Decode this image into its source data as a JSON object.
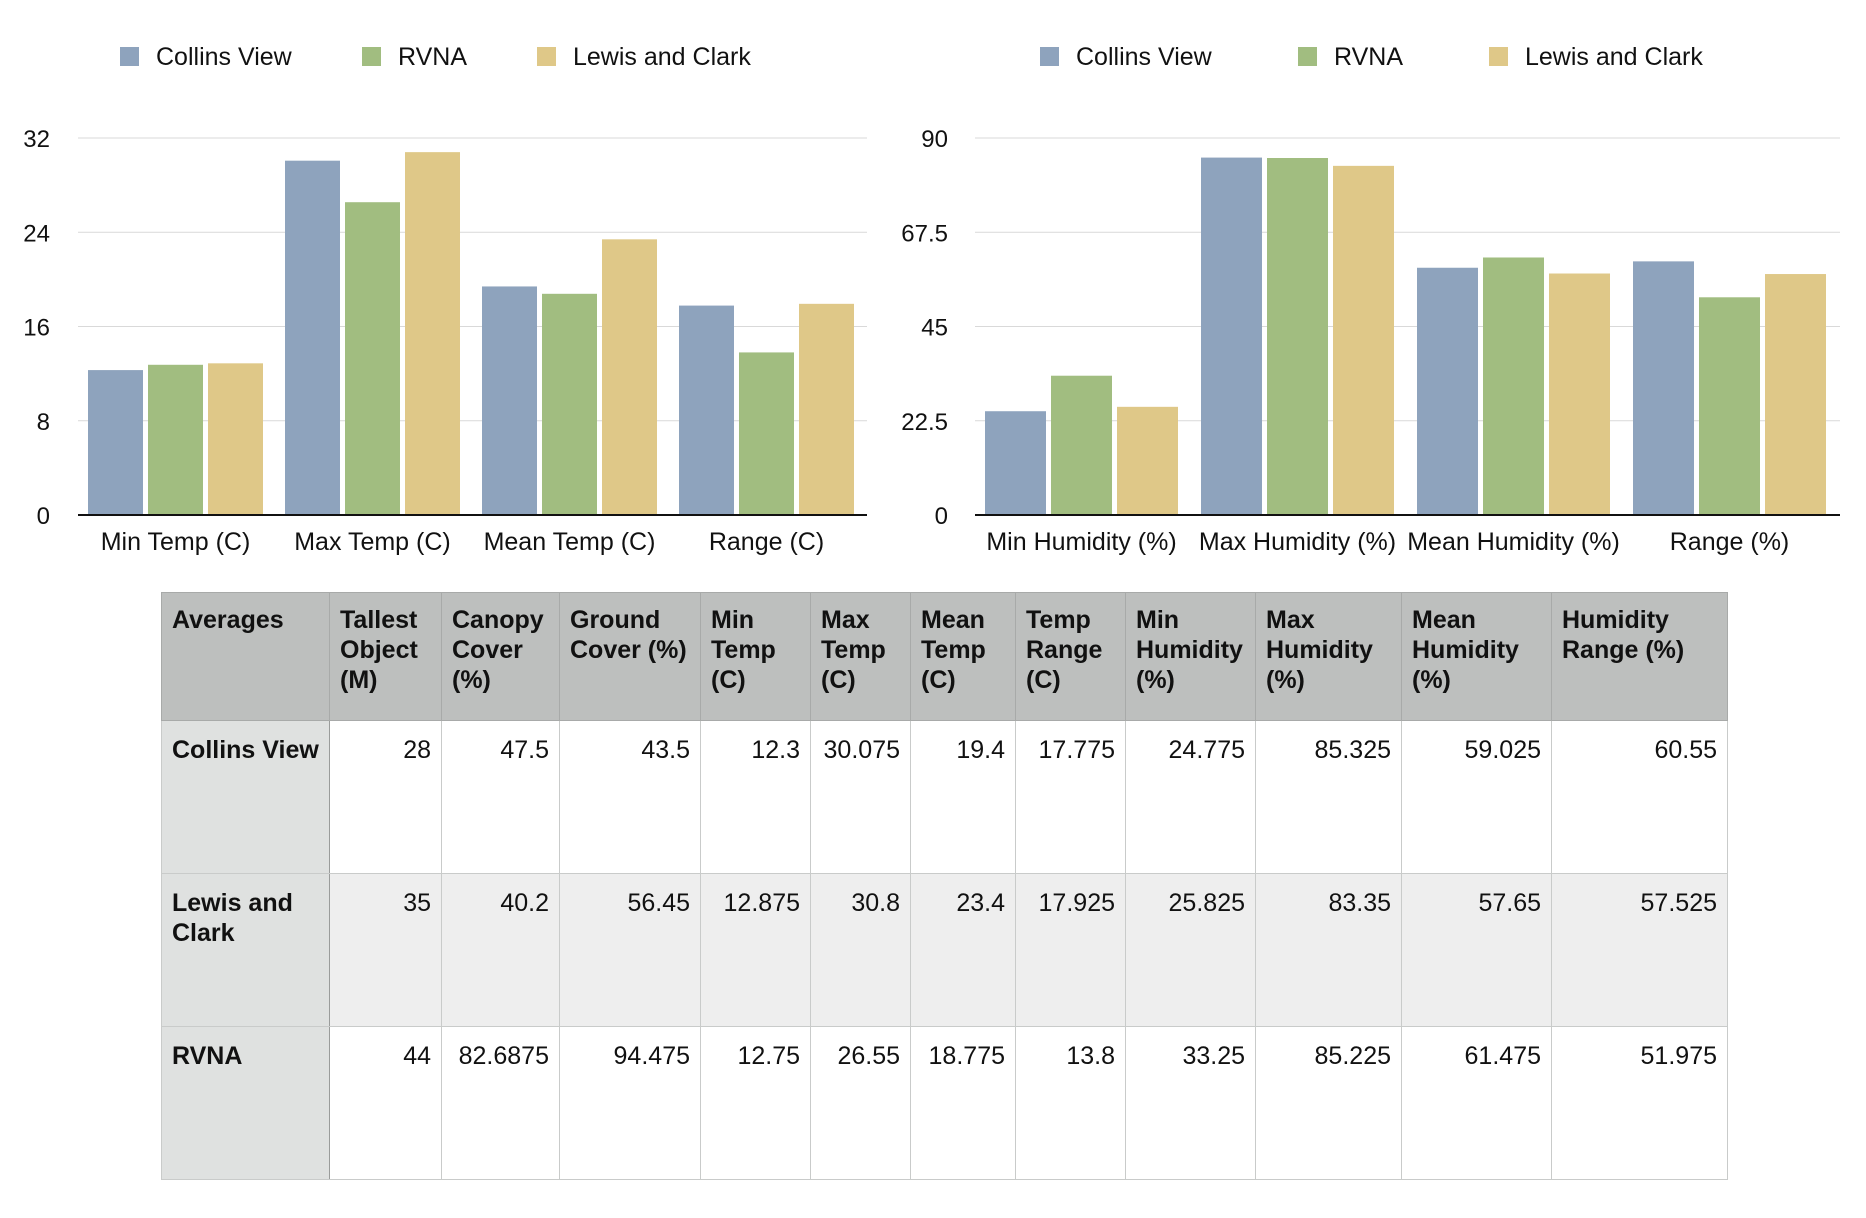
{
  "chart_data": [
    {
      "type": "bar",
      "categories": [
        "Min Temp (C)",
        "Max Temp (C)",
        "Mean Temp (C)",
        "Range (C)"
      ],
      "series": [
        {
          "name": "Collins View",
          "color": "#8ea3bd",
          "values": [
            12.3,
            30.075,
            19.4,
            17.775
          ]
        },
        {
          "name": "RVNA",
          "color": "#a1bd80",
          "values": [
            12.75,
            26.55,
            18.775,
            13.8
          ]
        },
        {
          "name": "Lewis and Clark",
          "color": "#dfc888",
          "values": [
            12.875,
            30.8,
            23.4,
            17.925
          ]
        }
      ],
      "yticks": [
        "0",
        "8",
        "16",
        "24",
        "32"
      ],
      "ylim": [
        0,
        32
      ],
      "grid": true,
      "legend": "top-left"
    },
    {
      "type": "bar",
      "categories": [
        "Min Humidity (%)",
        "Max Humidity (%)",
        "Mean Humidity (%)",
        "Range (%)"
      ],
      "series": [
        {
          "name": "Collins View",
          "color": "#8ea3bd",
          "values": [
            24.775,
            85.325,
            59.025,
            60.55
          ]
        },
        {
          "name": "RVNA",
          "color": "#a1bd80",
          "values": [
            33.25,
            85.225,
            61.475,
            51.975
          ]
        },
        {
          "name": "Lewis and Clark",
          "color": "#dfc888",
          "values": [
            25.825,
            83.35,
            57.65,
            57.525
          ]
        }
      ],
      "yticks": [
        "0",
        "22.5",
        "45",
        "67.5",
        "90"
      ],
      "ylim": [
        0,
        90
      ],
      "grid": true,
      "legend": "top-left"
    }
  ],
  "table": {
    "headers": [
      "Averages",
      "Tallest Object (M)",
      "Canopy Cover (%)",
      "Ground Cover (%)",
      "Min Temp (C)",
      "Max Temp (C)",
      "Mean Temp (C)",
      "Temp Range (C)",
      "Min Humidity (%)",
      "Max Humidity (%)",
      "Mean Humidity (%)",
      "Humidity Range (%)"
    ],
    "rows": [
      {
        "label": "Collins View",
        "values": [
          "28",
          "47.5",
          "43.5",
          "12.3",
          "30.075",
          "19.4",
          "17.775",
          "24.775",
          "85.325",
          "59.025",
          "60.55"
        ]
      },
      {
        "label": "Lewis and Clark",
        "values": [
          "35",
          "40.2",
          "56.45",
          "12.875",
          "30.8",
          "23.4",
          "17.925",
          "25.825",
          "83.35",
          "57.65",
          "57.525"
        ]
      },
      {
        "label": "RVNA",
        "values": [
          "44",
          "82.6875",
          "94.475",
          "12.75",
          "26.55",
          "18.775",
          "13.8",
          "33.25",
          "85.225",
          "61.475",
          "51.975"
        ]
      }
    ]
  }
}
